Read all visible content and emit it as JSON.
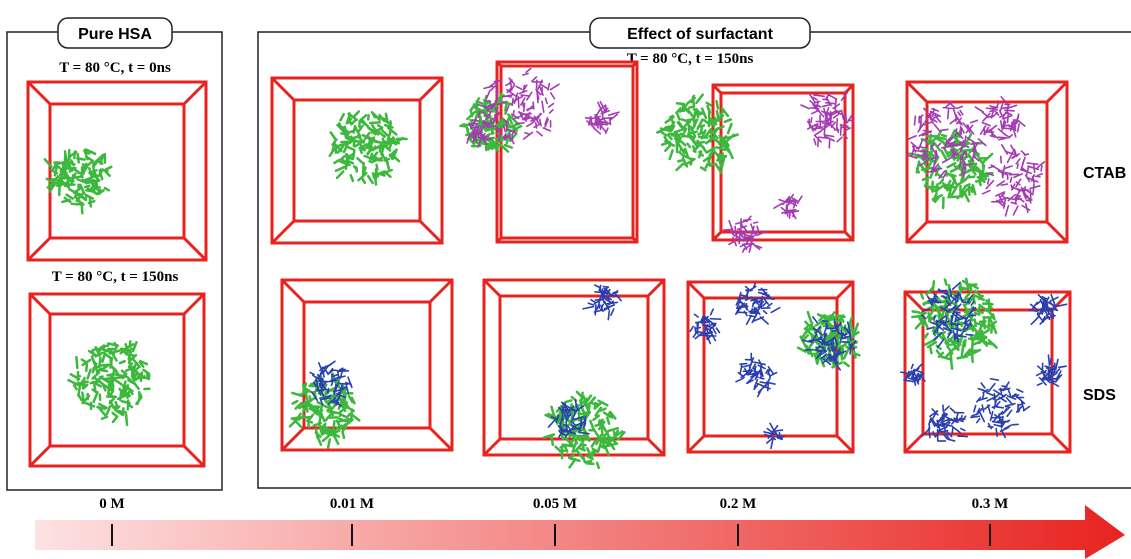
{
  "panels": [
    {
      "title": "Pure HSA",
      "conditions": [
        "T = 80 °C,   t = 0ns",
        "T = 80 °C,   t = 150ns"
      ]
    },
    {
      "title": "Effect of surfactant",
      "conditions": [
        "T = 80 °C,   t = 150ns"
      ],
      "rows": [
        "CTAB",
        "SDS"
      ]
    }
  ],
  "axis": {
    "labels": [
      "0 M",
      "0.01 M",
      "0.05 M",
      "0.2 M",
      "0.3 M"
    ]
  }
}
